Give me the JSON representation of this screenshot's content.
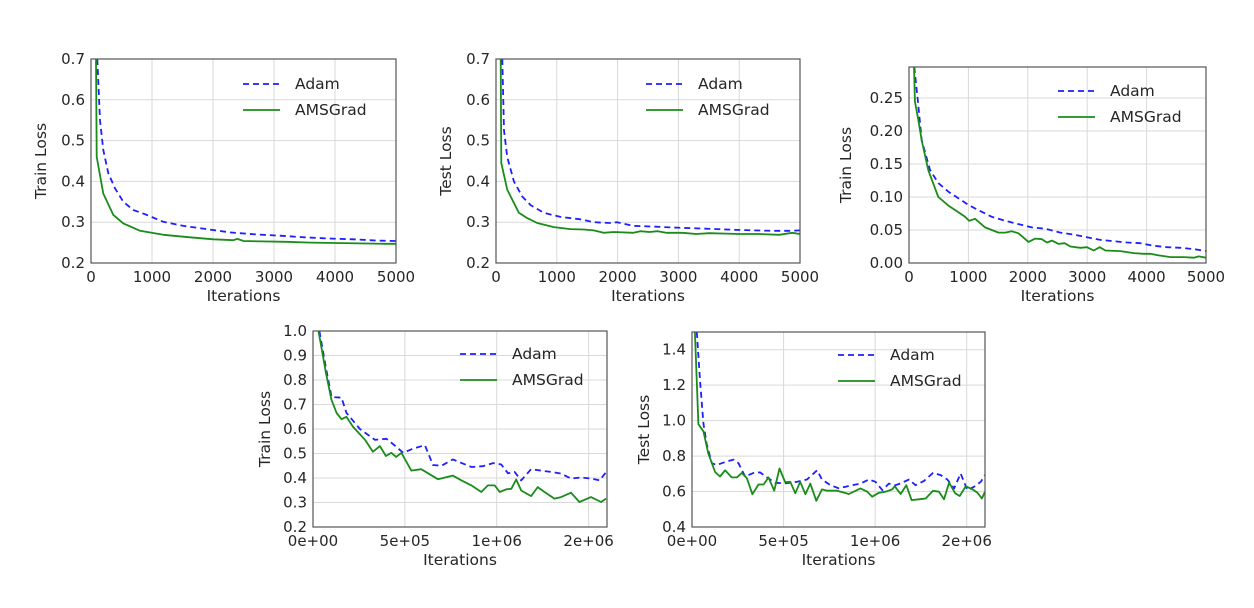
{
  "figure": {
    "description": "Comparison of Adam and AMSGrad training/test loss",
    "series_colors": {
      "Adam": "#1f1fff",
      "AMSGrad": "#1a8c1a"
    }
  },
  "chart_data": [
    {
      "id": "p1",
      "type": "line",
      "title": "",
      "xlabel": "Iterations",
      "ylabel": "Train Loss",
      "xlim": [
        0,
        5000
      ],
      "ylim": [
        0.2,
        0.7
      ],
      "xticks": [
        0,
        1000,
        2000,
        3000,
        4000,
        5000
      ],
      "xtick_labels": [
        "0",
        "1000",
        "2000",
        "3000",
        "4000",
        "5000"
      ],
      "yticks": [
        0.2,
        0.3,
        0.4,
        0.5,
        0.6,
        0.7
      ],
      "ytick_labels": [
        "0.2",
        "0.3",
        "0.4",
        "0.5",
        "0.6",
        "0.7"
      ],
      "grid": true,
      "legend": {
        "position": "upper-right",
        "entries": [
          "Adam",
          "AMSGrad"
        ]
      },
      "series": [
        {
          "name": "Adam",
          "style": "dashed",
          "x": [
            104,
            148,
            202,
            284,
            393,
            530,
            694,
            913,
            1186,
            1514,
            1896,
            2279,
            2700,
            3100,
            3500,
            3900,
            4300,
            4700,
            5000
          ],
          "y": [
            0.7,
            0.55,
            0.477,
            0.42,
            0.383,
            0.35,
            0.33,
            0.318,
            0.301,
            0.291,
            0.283,
            0.275,
            0.27,
            0.267,
            0.263,
            0.26,
            0.258,
            0.255,
            0.254
          ]
        },
        {
          "name": "AMSGrad",
          "style": "solid",
          "x": [
            82,
            93,
            202,
            366,
            530,
            803,
            1186,
            1623,
            2005,
            2333,
            2400,
            2500,
            2800,
            3200,
            3600,
            4000,
            4400,
            4800,
            5000
          ],
          "y": [
            0.7,
            0.46,
            0.37,
            0.318,
            0.297,
            0.279,
            0.269,
            0.263,
            0.258,
            0.256,
            0.259,
            0.254,
            0.253,
            0.252,
            0.25,
            0.249,
            0.248,
            0.247,
            0.247
          ]
        }
      ]
    },
    {
      "id": "p2",
      "type": "line",
      "title": "",
      "xlabel": "Iterations",
      "ylabel": "Test Loss",
      "xlim": [
        0,
        5000
      ],
      "ylim": [
        0.2,
        0.7
      ],
      "xticks": [
        0,
        1000,
        2000,
        3000,
        4000,
        5000
      ],
      "xtick_labels": [
        "0",
        "1000",
        "2000",
        "3000",
        "4000",
        "5000"
      ],
      "yticks": [
        0.2,
        0.3,
        0.4,
        0.5,
        0.6,
        0.7
      ],
      "ytick_labels": [
        "0.2",
        "0.3",
        "0.4",
        "0.5",
        "0.6",
        "0.7"
      ],
      "grid": true,
      "legend": {
        "position": "upper-right",
        "entries": [
          "Adam",
          "AMSGrad"
        ]
      },
      "series": [
        {
          "name": "Adam",
          "style": "dashed",
          "x": [
            103,
            131,
            185,
            295,
            431,
            569,
            787,
            1060,
            1388,
            1607,
            1880,
            1989,
            2262,
            2634,
            2907,
            3454,
            4000,
            4546,
            4820,
            5000
          ],
          "y": [
            0.7,
            0.525,
            0.46,
            0.4,
            0.363,
            0.342,
            0.323,
            0.313,
            0.307,
            0.3,
            0.298,
            0.3,
            0.291,
            0.289,
            0.287,
            0.284,
            0.281,
            0.279,
            0.279,
            0.28
          ]
        },
        {
          "name": "AMSGrad",
          "style": "solid",
          "x": [
            77,
            87,
            185,
            377,
            513,
            677,
            951,
            1224,
            1443,
            1607,
            1770,
            1934,
            2262,
            2372,
            2525,
            2661,
            2798,
            3071,
            3290,
            3508,
            3781,
            4000,
            4328,
            4656,
            4874,
            5000
          ],
          "y": [
            0.7,
            0.445,
            0.38,
            0.323,
            0.31,
            0.298,
            0.288,
            0.283,
            0.282,
            0.28,
            0.274,
            0.276,
            0.274,
            0.278,
            0.276,
            0.278,
            0.274,
            0.274,
            0.271,
            0.273,
            0.272,
            0.271,
            0.271,
            0.269,
            0.274,
            0.271
          ]
        }
      ]
    },
    {
      "id": "p3",
      "type": "line",
      "title": "",
      "xlabel": "Iterations",
      "ylabel": "Train Loss",
      "xlim": [
        0,
        5000
      ],
      "ylim": [
        0.0,
        0.297
      ],
      "xticks": [
        0,
        1000,
        2000,
        3000,
        4000,
        5000
      ],
      "xtick_labels": [
        "0",
        "1000",
        "2000",
        "3000",
        "4000",
        "5000"
      ],
      "yticks": [
        0.0,
        0.05,
        0.1,
        0.15,
        0.2,
        0.25
      ],
      "ytick_labels": [
        "0.00",
        "0.05",
        "0.10",
        "0.15",
        "0.20",
        "0.25"
      ],
      "grid": true,
      "legend": {
        "position": "upper-right",
        "entries": [
          "Adam",
          "AMSGrad"
        ]
      },
      "series": [
        {
          "name": "Adam",
          "style": "dashed",
          "x": [
            90,
            150,
            213,
            354,
            494,
            663,
            831,
            1000,
            1169,
            1394,
            1619,
            1844,
            2069,
            2294,
            2547,
            2772,
            2997,
            3222,
            3447,
            3671,
            3896,
            4121,
            4346,
            4570,
            4795,
            5000
          ],
          "y": [
            0.297,
            0.245,
            0.186,
            0.141,
            0.121,
            0.108,
            0.098,
            0.088,
            0.08,
            0.07,
            0.064,
            0.059,
            0.054,
            0.052,
            0.046,
            0.043,
            0.039,
            0.035,
            0.033,
            0.031,
            0.03,
            0.026,
            0.024,
            0.023,
            0.021,
            0.018
          ]
        },
        {
          "name": "AMSGrad",
          "style": "solid",
          "x": [
            85,
            100,
            157,
            213,
            326,
            494,
            663,
            831,
            944,
            1011,
            1113,
            1281,
            1506,
            1619,
            1731,
            1844,
            2012,
            2125,
            2237,
            2322,
            2406,
            2519,
            2620,
            2716,
            2884,
            2997,
            3109,
            3210,
            3306,
            3559,
            3784,
            3952,
            4065,
            4177,
            4402,
            4627,
            4795,
            4879,
            5000
          ],
          "y": [
            0.297,
            0.245,
            0.217,
            0.186,
            0.14,
            0.1,
            0.087,
            0.077,
            0.07,
            0.064,
            0.067,
            0.054,
            0.046,
            0.046,
            0.048,
            0.045,
            0.032,
            0.037,
            0.036,
            0.031,
            0.034,
            0.029,
            0.03,
            0.025,
            0.023,
            0.024,
            0.019,
            0.024,
            0.019,
            0.018,
            0.015,
            0.014,
            0.014,
            0.012,
            0.009,
            0.009,
            0.008,
            0.01,
            0.008
          ]
        }
      ]
    },
    {
      "id": "p4",
      "type": "line",
      "title": "",
      "xlabel": "Iterations",
      "ylabel": "Train Loss",
      "xlim": [
        0,
        1600000
      ],
      "ylim": [
        0.2,
        1.0
      ],
      "xticks": [
        0,
        500000,
        1000000,
        1500000
      ],
      "xtick_labels": [
        "0e+00",
        "5e+05",
        "1e+06",
        "2e+06"
      ],
      "yticks": [
        0.2,
        0.3,
        0.4,
        0.5,
        0.6,
        0.7,
        0.8,
        0.9,
        1.0
      ],
      "ytick_labels": [
        "0.2",
        "0.3",
        "0.4",
        "0.5",
        "0.6",
        "0.7",
        "0.8",
        "0.9",
        "1.0"
      ],
      "grid": true,
      "legend": {
        "position": "upper-right",
        "entries": [
          "Adam",
          "AMSGrad"
        ]
      },
      "series": [
        {
          "name": "Adam",
          "style": "dashed",
          "x": [
            35000,
            70000,
            101000,
            155000,
            182000,
            255000,
            337000,
            400000,
            446000,
            491000,
            544000,
            609000,
            653000,
            699000,
            761000,
            862000,
            925000,
            980000,
            1025000,
            1061000,
            1097000,
            1133000,
            1187000,
            1241000,
            1296000,
            1350000,
            1404000,
            1459000,
            1513000,
            1560000,
            1595000
          ],
          "y": [
            1.0,
            0.85,
            0.73,
            0.728,
            0.666,
            0.6,
            0.556,
            0.56,
            0.532,
            0.503,
            0.52,
            0.534,
            0.453,
            0.45,
            0.476,
            0.445,
            0.448,
            0.461,
            0.455,
            0.419,
            0.425,
            0.39,
            0.436,
            0.43,
            0.425,
            0.418,
            0.398,
            0.402,
            0.398,
            0.39,
            0.424
          ]
        },
        {
          "name": "AMSGrad",
          "style": "solid",
          "x": [
            30000,
            70000,
            100000,
            128000,
            155000,
            182000,
            217000,
            283000,
            326000,
            364000,
            397000,
            426000,
            453000,
            481000,
            535000,
            589000,
            680000,
            761000,
            808000,
            862000,
            916000,
            952000,
            989000,
            1016000,
            1052000,
            1079000,
            1106000,
            1133000,
            1187000,
            1223000,
            1260000,
            1314000,
            1350000,
            1404000,
            1450000,
            1513000,
            1568000,
            1595000
          ],
          "y": [
            1.0,
            0.83,
            0.72,
            0.666,
            0.64,
            0.65,
            0.61,
            0.556,
            0.507,
            0.53,
            0.49,
            0.503,
            0.486,
            0.503,
            0.43,
            0.436,
            0.395,
            0.41,
            0.39,
            0.37,
            0.343,
            0.37,
            0.37,
            0.343,
            0.354,
            0.356,
            0.394,
            0.349,
            0.326,
            0.363,
            0.343,
            0.316,
            0.322,
            0.34,
            0.302,
            0.322,
            0.302,
            0.316
          ]
        }
      ]
    },
    {
      "id": "p5",
      "type": "line",
      "title": "",
      "xlabel": "Iterations",
      "ylabel": "Test Loss",
      "xlim": [
        0,
        1600000
      ],
      "ylim": [
        0.4,
        1.5
      ],
      "xticks": [
        0,
        500000,
        1000000,
        1500000
      ],
      "xtick_labels": [
        "0e+00",
        "5e+05",
        "1e+06",
        "2e+06"
      ],
      "yticks": [
        0.4,
        0.6,
        0.8,
        1.0,
        1.2,
        1.4
      ],
      "ytick_labels": [
        "0.4",
        "0.6",
        "0.8",
        "1.0",
        "1.2",
        "1.4"
      ],
      "grid": true,
      "legend": {
        "position": "upper-right",
        "entries": [
          "Adam",
          "AMSGrad"
        ]
      },
      "series": [
        {
          "name": "Adam",
          "style": "dashed",
          "x": [
            26000,
            44000,
            62000,
            80000,
            108000,
            135000,
            190000,
            227000,
            254000,
            290000,
            336000,
            372000,
            409000,
            454000,
            509000,
            573000,
            628000,
            683000,
            710000,
            756000,
            802000,
            874000,
            920000,
            966000,
            1002000,
            1039000,
            1075000,
            1112000,
            1148000,
            1185000,
            1221000,
            1267000,
            1316000,
            1358000,
            1394000,
            1431000,
            1467000,
            1504000,
            1540000,
            1577000,
            1600000
          ],
          "y": [
            1.5,
            1.22,
            0.985,
            0.87,
            0.76,
            0.75,
            0.77,
            0.78,
            0.76,
            0.685,
            0.705,
            0.708,
            0.68,
            0.65,
            0.646,
            0.655,
            0.668,
            0.72,
            0.668,
            0.636,
            0.618,
            0.636,
            0.645,
            0.668,
            0.655,
            0.608,
            0.645,
            0.636,
            0.65,
            0.668,
            0.636,
            0.66,
            0.705,
            0.693,
            0.668,
            0.618,
            0.702,
            0.608,
            0.627,
            0.655,
            0.693
          ]
        },
        {
          "name": "AMSGrad",
          "style": "solid",
          "x": [
            16000,
            35000,
            62000,
            89000,
            126000,
            153000,
            181000,
            217000,
            245000,
            272000,
            300000,
            330000,
            363000,
            391000,
            418000,
            449000,
            478000,
            509000,
            537000,
            564000,
            591000,
            619000,
            646000,
            679000,
            710000,
            738000,
            793000,
            856000,
            920000,
            957000,
            984000,
            1020000,
            1057000,
            1093000,
            1107000,
            1139000,
            1170000,
            1199000,
            1239000,
            1276000,
            1316000,
            1349000,
            1376000,
            1404000,
            1437000,
            1462000,
            1495000,
            1532000,
            1559000,
            1583000,
            1600000
          ],
          "y": [
            1.5,
            0.98,
            0.94,
            0.815,
            0.71,
            0.685,
            0.72,
            0.68,
            0.68,
            0.705,
            0.675,
            0.585,
            0.64,
            0.64,
            0.68,
            0.605,
            0.73,
            0.653,
            0.655,
            0.59,
            0.655,
            0.585,
            0.645,
            0.548,
            0.612,
            0.605,
            0.605,
            0.586,
            0.618,
            0.599,
            0.571,
            0.593,
            0.599,
            0.612,
            0.63,
            0.586,
            0.636,
            0.552,
            0.556,
            0.561,
            0.604,
            0.599,
            0.556,
            0.65,
            0.59,
            0.575,
            0.63,
            0.612,
            0.593,
            0.561,
            0.599
          ]
        }
      ]
    }
  ]
}
